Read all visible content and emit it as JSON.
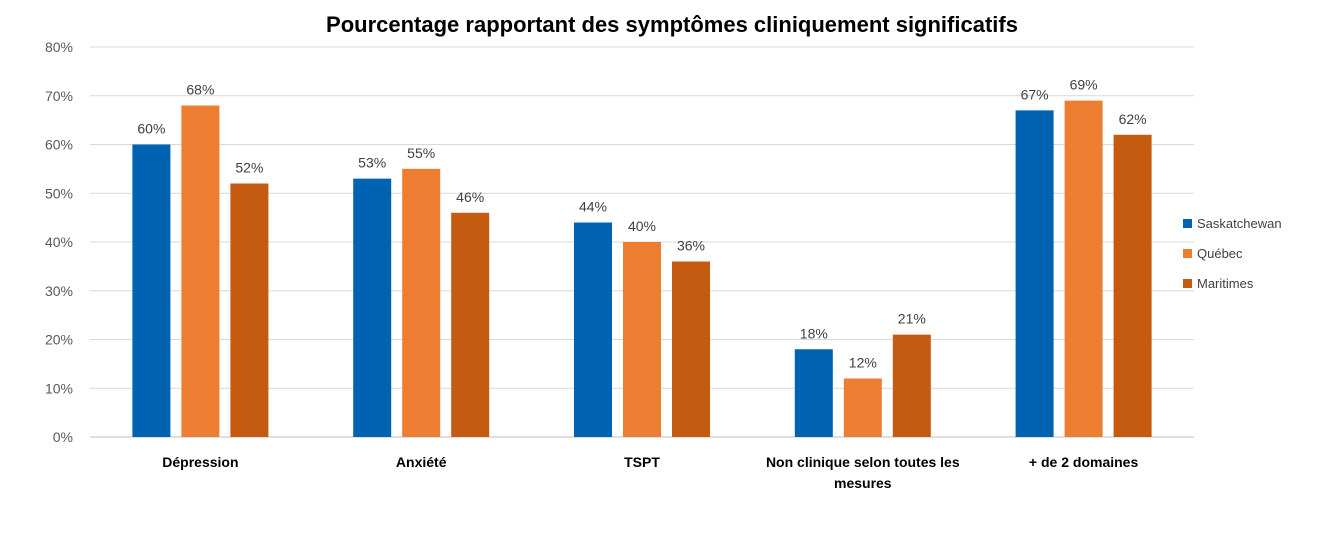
{
  "chart_data": {
    "type": "bar",
    "title": "Pourcentage rapportant des symptômes cliniquement significatifs",
    "xlabel": "",
    "ylabel": "",
    "ylim": [
      0,
      80
    ],
    "ytick_step": 10,
    "yticks": [
      "0%",
      "10%",
      "20%",
      "30%",
      "40%",
      "50%",
      "60%",
      "70%",
      "80%"
    ],
    "value_suffix": "%",
    "grid": true,
    "legend_position": "right",
    "categories": [
      [
        "Dépression"
      ],
      [
        "Anxiété"
      ],
      [
        "TSPT"
      ],
      [
        "Non clinique selon toutes les",
        "mesures"
      ],
      [
        "+ de 2 domaines"
      ]
    ],
    "series": [
      {
        "name": "Saskatchewan",
        "color": "#0063b1",
        "values": [
          60,
          53,
          44,
          18,
          67
        ]
      },
      {
        "name": "Québec",
        "color": "#ed7d31",
        "values": [
          68,
          55,
          40,
          12,
          69
        ]
      },
      {
        "name": "Maritimes",
        "color": "#c55a11",
        "values": [
          52,
          46,
          36,
          21,
          62
        ]
      }
    ]
  }
}
